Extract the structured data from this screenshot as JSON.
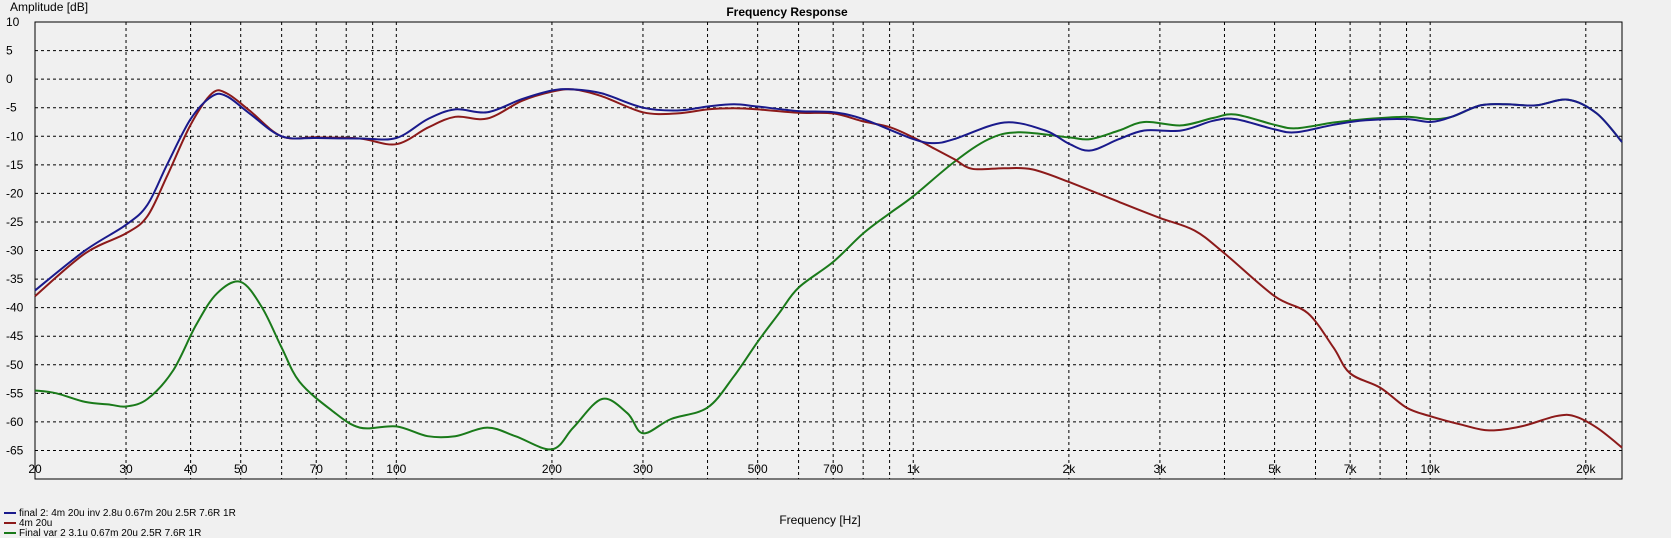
{
  "chart_data": {
    "type": "line",
    "title": "Frequency Response",
    "xlabel": "Frequency [Hz]",
    "ylabel": "Amplitude [dB]",
    "x_scale": "log",
    "xlim": [
      20,
      23500
    ],
    "ylim": [
      -70,
      10
    ],
    "grid": true,
    "legend_position": "bottom-left",
    "x_ticks": [
      {
        "value": 20,
        "label": "20"
      },
      {
        "value": 30,
        "label": "30"
      },
      {
        "value": 40,
        "label": "40"
      },
      {
        "value": 50,
        "label": "50"
      },
      {
        "value": 70,
        "label": "70"
      },
      {
        "value": 100,
        "label": "100"
      },
      {
        "value": 200,
        "label": "200"
      },
      {
        "value": 300,
        "label": "300"
      },
      {
        "value": 500,
        "label": "500"
      },
      {
        "value": 700,
        "label": "700"
      },
      {
        "value": 1000,
        "label": "1k"
      },
      {
        "value": 2000,
        "label": "2k"
      },
      {
        "value": 3000,
        "label": "3k"
      },
      {
        "value": 5000,
        "label": "5k"
      },
      {
        "value": 7000,
        "label": "7k"
      },
      {
        "value": 10000,
        "label": "10k"
      },
      {
        "value": 20000,
        "label": "20k"
      }
    ],
    "x_gridlines": [
      20,
      30,
      40,
      50,
      60,
      70,
      80,
      90,
      100,
      200,
      300,
      400,
      500,
      600,
      700,
      800,
      900,
      1000,
      2000,
      3000,
      4000,
      5000,
      6000,
      7000,
      8000,
      9000,
      10000,
      20000
    ],
    "y_ticks": [
      10,
      5,
      0,
      -5,
      -10,
      -15,
      -20,
      -25,
      -30,
      -35,
      -40,
      -45,
      -50,
      -55,
      -60,
      -65
    ],
    "series": [
      {
        "name": "final 2: 4m 20u inv 2.8u 0.67m 20u 2.5R 7.6R 1R",
        "color": "#1a1a8c",
        "points": [
          [
            20,
            -37
          ],
          [
            25,
            -30
          ],
          [
            30,
            -25.5
          ],
          [
            33,
            -22
          ],
          [
            36,
            -15
          ],
          [
            40,
            -7
          ],
          [
            44,
            -3
          ],
          [
            47,
            -3
          ],
          [
            52,
            -6
          ],
          [
            60,
            -10
          ],
          [
            70,
            -10.3
          ],
          [
            85,
            -10.4
          ],
          [
            100,
            -10.3
          ],
          [
            115,
            -7
          ],
          [
            130,
            -5.3
          ],
          [
            150,
            -5.8
          ],
          [
            175,
            -3.5
          ],
          [
            200,
            -2
          ],
          [
            220,
            -1.8
          ],
          [
            250,
            -2.5
          ],
          [
            300,
            -5
          ],
          [
            350,
            -5.5
          ],
          [
            400,
            -4.8
          ],
          [
            450,
            -4.4
          ],
          [
            500,
            -4.8
          ],
          [
            600,
            -5.6
          ],
          [
            700,
            -5.8
          ],
          [
            800,
            -7
          ],
          [
            1000,
            -10.5
          ],
          [
            1100,
            -11.2
          ],
          [
            1200,
            -10.5
          ],
          [
            1500,
            -7.6
          ],
          [
            1800,
            -9
          ],
          [
            2000,
            -11.3
          ],
          [
            2200,
            -12.5
          ],
          [
            2500,
            -10.5
          ],
          [
            2800,
            -9
          ],
          [
            3300,
            -9
          ],
          [
            3800,
            -7.3
          ],
          [
            4200,
            -7
          ],
          [
            5000,
            -8.8
          ],
          [
            5500,
            -9.3
          ],
          [
            6500,
            -8
          ],
          [
            7500,
            -7.2
          ],
          [
            9000,
            -7
          ],
          [
            10000,
            -7.5
          ],
          [
            11000,
            -6.6
          ],
          [
            12500,
            -4.6
          ],
          [
            14000,
            -4.4
          ],
          [
            16000,
            -4.6
          ],
          [
            18500,
            -3.6
          ],
          [
            21000,
            -6
          ],
          [
            23500,
            -11
          ]
        ]
      },
      {
        "name": "4m 20u",
        "color": "#8c1a1a",
        "points": [
          [
            20,
            -38
          ],
          [
            25,
            -30.5
          ],
          [
            30,
            -27
          ],
          [
            33,
            -24
          ],
          [
            36,
            -17
          ],
          [
            40,
            -8
          ],
          [
            44,
            -2.5
          ],
          [
            47,
            -2.5
          ],
          [
            52,
            -5.5
          ],
          [
            60,
            -10
          ],
          [
            70,
            -10.2
          ],
          [
            85,
            -10.4
          ],
          [
            100,
            -11.4
          ],
          [
            115,
            -8.5
          ],
          [
            130,
            -6.6
          ],
          [
            150,
            -6.9
          ],
          [
            175,
            -3.8
          ],
          [
            200,
            -2.2
          ],
          [
            220,
            -1.8
          ],
          [
            250,
            -3
          ],
          [
            300,
            -5.8
          ],
          [
            350,
            -6
          ],
          [
            400,
            -5.3
          ],
          [
            450,
            -5.1
          ],
          [
            500,
            -5.3
          ],
          [
            600,
            -5.9
          ],
          [
            700,
            -6
          ],
          [
            800,
            -7.4
          ],
          [
            900,
            -8.4
          ],
          [
            1000,
            -10.2
          ],
          [
            1100,
            -12.2
          ],
          [
            1200,
            -14
          ],
          [
            1300,
            -15.7
          ],
          [
            1500,
            -15.6
          ],
          [
            1700,
            -15.8
          ],
          [
            2000,
            -18
          ],
          [
            2500,
            -21.5
          ],
          [
            3000,
            -24.3
          ],
          [
            3500,
            -26.5
          ],
          [
            4000,
            -30.5
          ],
          [
            5000,
            -38
          ],
          [
            5800,
            -41
          ],
          [
            6500,
            -47
          ],
          [
            7000,
            -51.5
          ],
          [
            8000,
            -54
          ],
          [
            9000,
            -57.5
          ],
          [
            10000,
            -59
          ],
          [
            11500,
            -60.5
          ],
          [
            13000,
            -61.5
          ],
          [
            15000,
            -60.8
          ],
          [
            17500,
            -59
          ],
          [
            19000,
            -59
          ],
          [
            21000,
            -61
          ],
          [
            23500,
            -64.5
          ]
        ]
      },
      {
        "name": "Final var 2 3.1u 0.67m 20u 2.5R 7.6R 1R",
        "color": "#1a7a1a",
        "points": [
          [
            20,
            -54.5
          ],
          [
            22,
            -55
          ],
          [
            25,
            -56.5
          ],
          [
            28,
            -57
          ],
          [
            30,
            -57.3
          ],
          [
            33,
            -56
          ],
          [
            37,
            -51
          ],
          [
            41,
            -43
          ],
          [
            45,
            -37.5
          ],
          [
            50,
            -35.5
          ],
          [
            55,
            -40
          ],
          [
            60,
            -47
          ],
          [
            65,
            -53
          ],
          [
            75,
            -58
          ],
          [
            85,
            -61
          ],
          [
            100,
            -60.8
          ],
          [
            115,
            -62.5
          ],
          [
            130,
            -62.5
          ],
          [
            150,
            -61
          ],
          [
            170,
            -62.5
          ],
          [
            200,
            -64.8
          ],
          [
            220,
            -61
          ],
          [
            250,
            -56
          ],
          [
            280,
            -58.5
          ],
          [
            300,
            -62
          ],
          [
            340,
            -59.5
          ],
          [
            400,
            -57.5
          ],
          [
            450,
            -52
          ],
          [
            500,
            -46
          ],
          [
            550,
            -41
          ],
          [
            600,
            -36.5
          ],
          [
            700,
            -32
          ],
          [
            800,
            -27
          ],
          [
            900,
            -23.5
          ],
          [
            1000,
            -20.5
          ],
          [
            1200,
            -14.5
          ],
          [
            1400,
            -10.5
          ],
          [
            1600,
            -9.3
          ],
          [
            2000,
            -10.2
          ],
          [
            2200,
            -10.5
          ],
          [
            2500,
            -9
          ],
          [
            2800,
            -7.5
          ],
          [
            3300,
            -8.1
          ],
          [
            3800,
            -6.8
          ],
          [
            4200,
            -6.2
          ],
          [
            5000,
            -8
          ],
          [
            5500,
            -8.6
          ],
          [
            6500,
            -7.6
          ],
          [
            7500,
            -7
          ],
          [
            9000,
            -6.6
          ],
          [
            10000,
            -7
          ],
          [
            11000,
            -6.6
          ],
          [
            12500,
            -4.6
          ],
          [
            14000,
            -4.4
          ],
          [
            16000,
            -4.6
          ],
          [
            18500,
            -3.6
          ],
          [
            21000,
            -6
          ],
          [
            23500,
            -11
          ]
        ]
      }
    ]
  }
}
